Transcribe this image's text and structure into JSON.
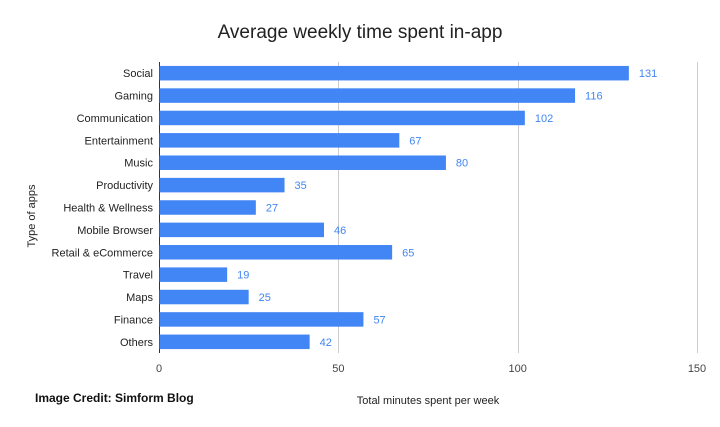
{
  "chart_data": {
    "type": "bar",
    "orientation": "horizontal",
    "title": "Average weekly time spent in-app",
    "xlabel": "Total minutes spent per week",
    "ylabel": "Type of apps",
    "categories": [
      "Social",
      "Gaming",
      "Communication",
      "Entertainment",
      "Music",
      "Productivity",
      "Health & Wellness",
      "Mobile Browser",
      "Retail & eCommerce",
      "Travel",
      "Maps",
      "Finance",
      "Others"
    ],
    "values": [
      131,
      116,
      102,
      67,
      80,
      35,
      27,
      46,
      65,
      19,
      25,
      57,
      42
    ],
    "xlim": [
      0,
      150
    ],
    "xticks": [
      0,
      50,
      100,
      150
    ],
    "grid": true,
    "data_labels": true,
    "bar_color": "#4285f4",
    "label_color": "#4285f4"
  },
  "credit": "Image Credit: Simform Blog"
}
